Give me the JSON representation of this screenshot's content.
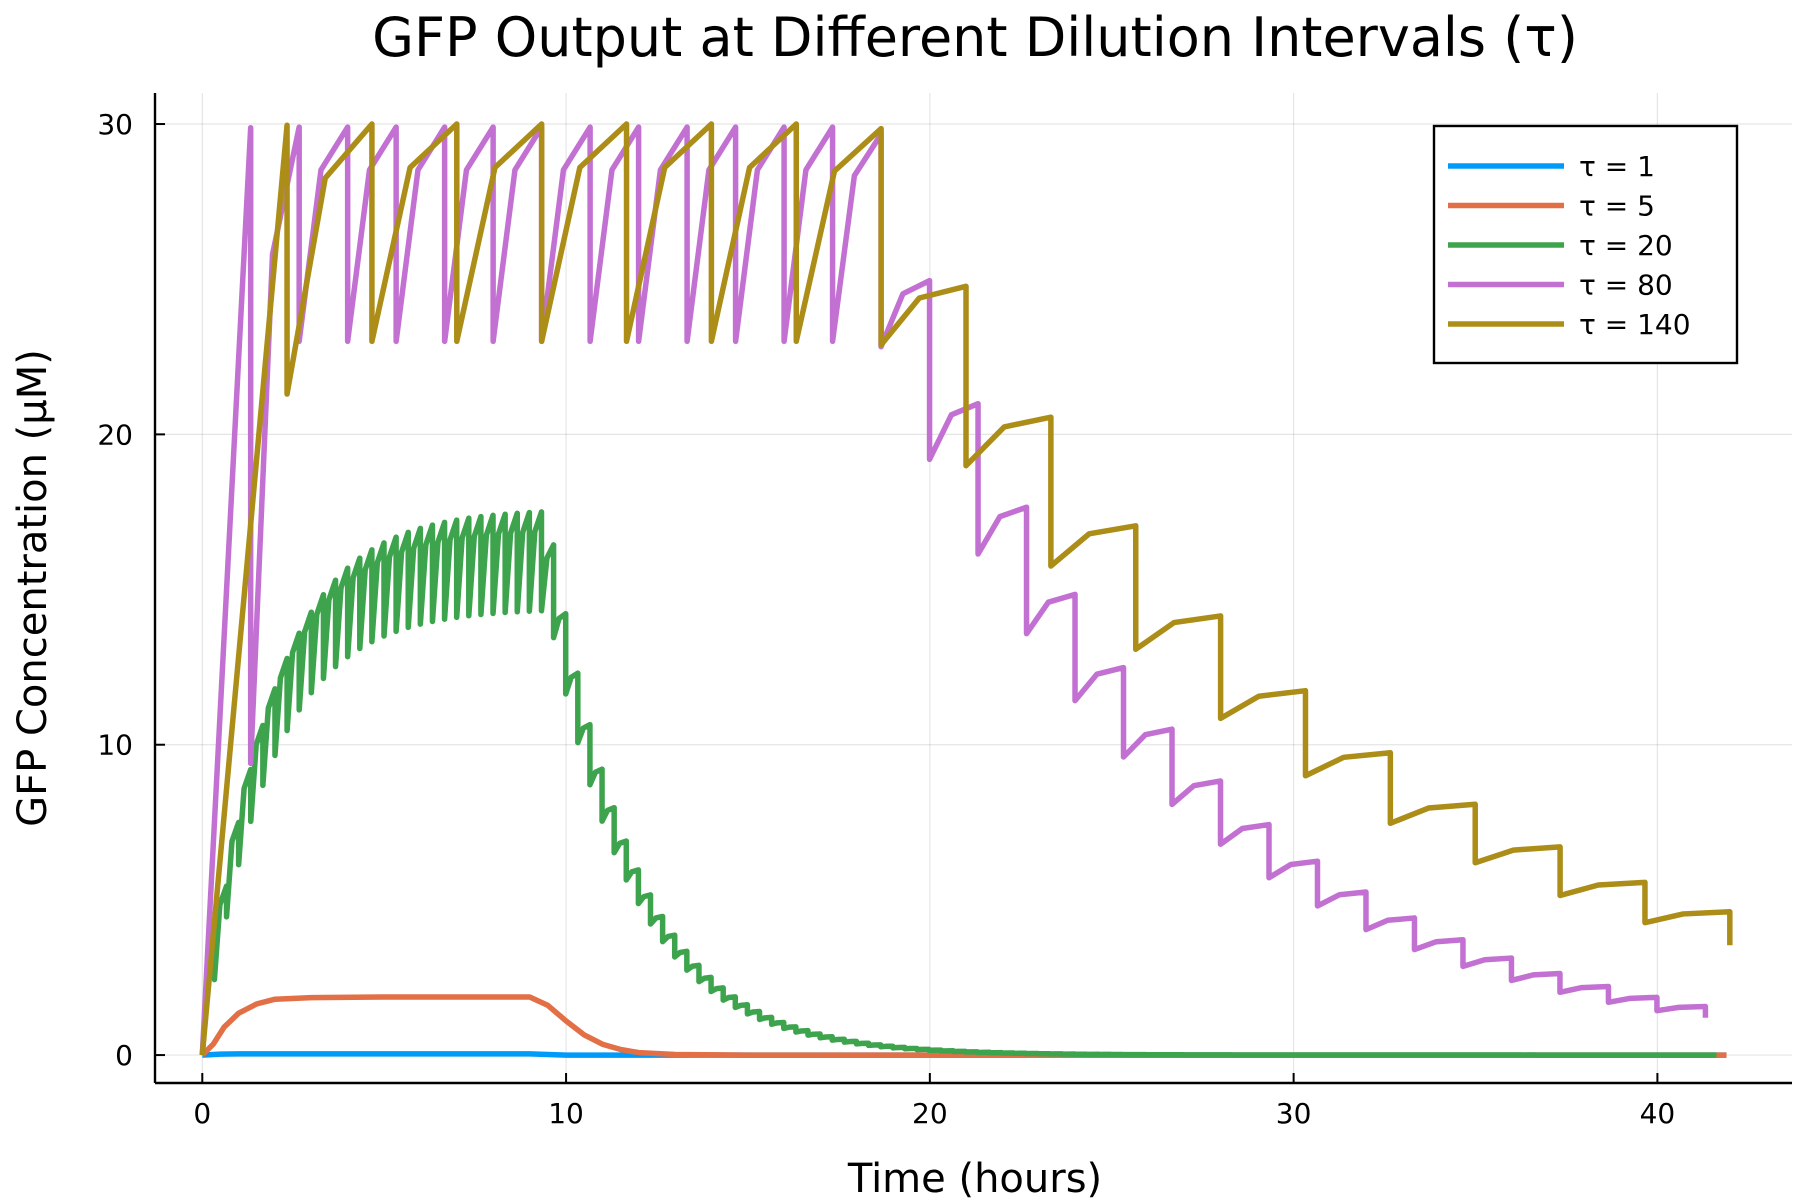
{
  "chart_data": {
    "type": "line",
    "title": "GFP Output at Different Dilution Intervals (τ)",
    "xlabel": "Time (hours)",
    "ylabel": "GFP Concentration (μM)",
    "xlim": [
      -1.3,
      43.7
    ],
    "ylim": [
      -0.9,
      31.0
    ],
    "xticks": [
      0,
      10,
      20,
      30,
      40
    ],
    "yticks": [
      0,
      10,
      20,
      30
    ],
    "grid": true,
    "legend_position": "top-right",
    "series": [
      {
        "name": "τ = 1",
        "color": "#009AF9",
        "x": [
          0,
          0.5,
          1,
          2,
          4,
          6,
          8,
          9,
          9.5,
          10,
          12,
          20,
          30,
          41.9
        ],
        "y": [
          0,
          0.03,
          0.04,
          0.04,
          0.04,
          0.04,
          0.04,
          0.04,
          0.02,
          0.0,
          0.0,
          0.0,
          0.0,
          0.0
        ]
      },
      {
        "name": "τ = 5",
        "color": "#E26F46",
        "x": [
          0,
          0.3,
          0.6,
          1.0,
          1.5,
          2.0,
          3.0,
          5.0,
          7.0,
          9.0,
          9.5,
          10.0,
          10.5,
          11.0,
          11.5,
          12.0,
          13.0,
          15.0,
          20.0,
          30.0,
          41.9
        ],
        "y": [
          0,
          0.35,
          0.9,
          1.35,
          1.65,
          1.8,
          1.85,
          1.87,
          1.87,
          1.87,
          1.6,
          1.1,
          0.65,
          0.35,
          0.18,
          0.08,
          0.02,
          0.0,
          0.0,
          0.0,
          0.0
        ],
        "band": 0.15
      },
      {
        "name": "τ = 20",
        "color": "#3DA44D",
        "sawtooth": {
          "t_start": 0.0,
          "period": 0.333,
          "t_end": 41.9,
          "growth_end": 9.5,
          "peak_max": 17.6,
          "trough_max": 14.4,
          "rise_tau": 1.8,
          "decay_tau": 2.3
        }
      },
      {
        "name": "τ = 80",
        "color": "#C271D2",
        "sawtooth": {
          "t_start": 1.33,
          "period": 1.333,
          "t_end": 42.6,
          "growth_end": 18.6,
          "peak_max": 29.9,
          "trough_max": 23.0,
          "rise_tau": 0.18,
          "decay_tau": 7.7,
          "first_trough": 9.4
        }
      },
      {
        "name": "τ = 140",
        "color": "#AC8D18",
        "sawtooth": {
          "t_start": 2.33,
          "period": 2.333,
          "t_end": 42.4,
          "growth_end": 18.6,
          "peak_max": 30.0,
          "trough_max": 23.0,
          "rise_tau": 0.35,
          "decay_tau": 12.5,
          "first_trough": 21.3
        }
      }
    ]
  }
}
